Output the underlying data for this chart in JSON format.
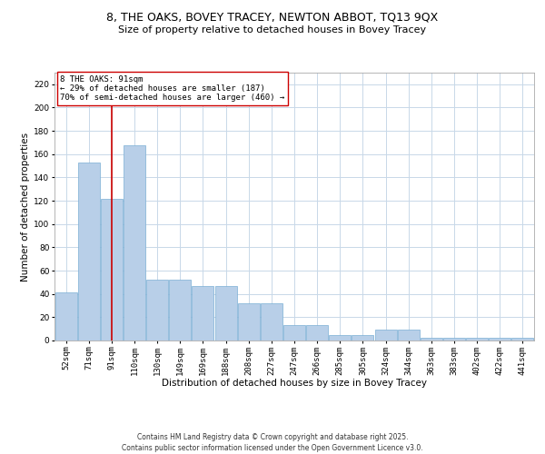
{
  "title1": "8, THE OAKS, BOVEY TRACEY, NEWTON ABBOT, TQ13 9QX",
  "title2": "Size of property relative to detached houses in Bovey Tracey",
  "xlabel": "Distribution of detached houses by size in Bovey Tracey",
  "ylabel": "Number of detached properties",
  "categories": [
    "52sqm",
    "71sqm",
    "91sqm",
    "110sqm",
    "130sqm",
    "149sqm",
    "169sqm",
    "188sqm",
    "208sqm",
    "227sqm",
    "247sqm",
    "266sqm",
    "285sqm",
    "305sqm",
    "324sqm",
    "344sqm",
    "363sqm",
    "383sqm",
    "402sqm",
    "422sqm",
    "441sqm"
  ],
  "values": [
    41,
    153,
    122,
    168,
    52,
    52,
    47,
    47,
    32,
    32,
    13,
    13,
    5,
    5,
    9,
    9,
    2,
    2,
    2,
    2,
    2
  ],
  "bar_color": "#b8cfe8",
  "bar_edge_color": "#7aafd4",
  "vline_x": 2,
  "vline_color": "#cc0000",
  "annotation_text": "8 THE OAKS: 91sqm\n← 29% of detached houses are smaller (187)\n70% of semi-detached houses are larger (460) →",
  "annotation_box_color": "#ffffff",
  "annotation_box_edge": "#cc0000",
  "ylim": [
    0,
    230
  ],
  "yticks": [
    0,
    20,
    40,
    60,
    80,
    100,
    120,
    140,
    160,
    180,
    200,
    220
  ],
  "bg_color": "#ffffff",
  "grid_color": "#c8d8e8",
  "footer": "Contains HM Land Registry data © Crown copyright and database right 2025.\nContains public sector information licensed under the Open Government Licence v3.0.",
  "title_fontsize": 9,
  "subtitle_fontsize": 8,
  "axis_label_fontsize": 7.5,
  "tick_fontsize": 6.5,
  "annotation_fontsize": 6.5,
  "footer_fontsize": 5.5
}
